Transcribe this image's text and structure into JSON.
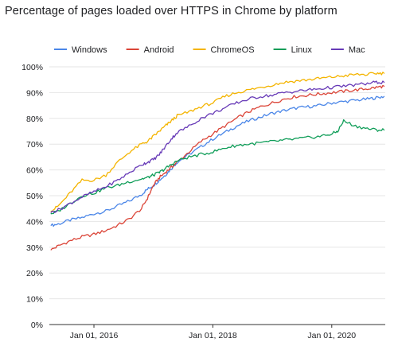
{
  "title": "Percentage of pages loaded over HTTPS in Chrome by platform",
  "chart_data": {
    "type": "line",
    "title": "Percentage of pages loaded over HTTPS in Chrome by platform",
    "xlabel": "",
    "ylabel": "",
    "x_ticks": [
      "Jan 01, 2016",
      "Jan 01, 2018",
      "Jan 01, 2020"
    ],
    "x_tick_values": [
      2016.0,
      2018.0,
      2020.0
    ],
    "xlim": [
      2015.25,
      2020.9
    ],
    "y_ticks": [
      "0%",
      "10%",
      "20%",
      "30%",
      "40%",
      "50%",
      "60%",
      "70%",
      "80%",
      "90%",
      "100%"
    ],
    "ylim": [
      0,
      100
    ],
    "y_unit": "%",
    "grid": true,
    "legend_position": "top",
    "series": [
      {
        "name": "Windows",
        "color": "#4a86e8",
        "x": [
          2015.28,
          2015.4,
          2015.6,
          2015.8,
          2016.0,
          2016.2,
          2016.4,
          2016.6,
          2016.8,
          2016.9,
          2017.0,
          2017.1,
          2017.2,
          2017.3,
          2017.4,
          2017.6,
          2017.8,
          2018.0,
          2018.2,
          2018.4,
          2018.6,
          2018.8,
          2019.0,
          2019.2,
          2019.4,
          2019.6,
          2019.8,
          2020.0,
          2020.2,
          2020.4,
          2020.6,
          2020.75,
          2020.88
        ],
        "y": [
          38.5,
          39,
          40.5,
          41.5,
          43,
          44,
          46,
          48,
          50.5,
          52.5,
          54,
          56,
          58,
          60.5,
          63,
          66,
          69,
          72,
          74.5,
          77,
          79,
          80.5,
          82,
          83,
          84,
          84.5,
          85,
          86,
          86.5,
          87,
          87.5,
          88,
          88.5
        ]
      },
      {
        "name": "Android",
        "color": "#db4437",
        "x": [
          2015.28,
          2015.4,
          2015.6,
          2015.8,
          2016.0,
          2016.2,
          2016.4,
          2016.6,
          2016.8,
          2016.9,
          2017.0,
          2017.1,
          2017.2,
          2017.3,
          2017.4,
          2017.6,
          2017.8,
          2018.0,
          2018.2,
          2018.4,
          2018.6,
          2018.8,
          2019.0,
          2019.2,
          2019.4,
          2019.6,
          2019.8,
          2020.0,
          2020.2,
          2020.4,
          2020.6,
          2020.75,
          2020.88
        ],
        "y": [
          29,
          30.5,
          32.5,
          34,
          35,
          36.5,
          38.5,
          41,
          45,
          49,
          54,
          57,
          59,
          61,
          63,
          67,
          71,
          74,
          77,
          80,
          82.5,
          84.5,
          86,
          87.5,
          88.5,
          89,
          89.5,
          90,
          90.5,
          91,
          91.5,
          92,
          92.5
        ]
      },
      {
        "name": "ChromeOS",
        "color": "#f4b400",
        "x": [
          2015.28,
          2015.4,
          2015.6,
          2015.8,
          2016.0,
          2016.2,
          2016.4,
          2016.6,
          2016.8,
          2016.9,
          2017.0,
          2017.1,
          2017.2,
          2017.3,
          2017.4,
          2017.6,
          2017.8,
          2018.0,
          2018.2,
          2018.4,
          2018.6,
          2018.8,
          2019.0,
          2019.2,
          2019.4,
          2019.6,
          2019.8,
          2020.0,
          2020.2,
          2020.4,
          2020.6,
          2020.75,
          2020.88
        ],
        "y": [
          44,
          46,
          51,
          56,
          56,
          58,
          63,
          67,
          70,
          71,
          73,
          75,
          77,
          79,
          81,
          82.5,
          84.5,
          86,
          88.5,
          90,
          91,
          92,
          93,
          94,
          94.5,
          95,
          95.5,
          96,
          96.5,
          97,
          97,
          97.5,
          97.5
        ]
      },
      {
        "name": "Linux",
        "color": "#0f9d58",
        "x": [
          2015.28,
          2015.4,
          2015.6,
          2015.8,
          2016.0,
          2016.2,
          2016.4,
          2016.6,
          2016.8,
          2016.9,
          2017.0,
          2017.1,
          2017.2,
          2017.3,
          2017.4,
          2017.6,
          2017.8,
          2018.0,
          2018.2,
          2018.4,
          2018.6,
          2018.8,
          2019.0,
          2019.2,
          2019.4,
          2019.6,
          2019.8,
          2020.0,
          2020.1,
          2020.2,
          2020.4,
          2020.6,
          2020.75,
          2020.88
        ],
        "y": [
          43,
          44,
          47,
          50,
          51,
          53,
          54,
          55.5,
          56.5,
          57,
          58,
          59,
          60.5,
          62,
          63.5,
          65,
          66,
          67,
          68.5,
          69.5,
          70,
          70.5,
          71,
          71.5,
          72,
          72.5,
          73,
          74,
          75,
          79,
          77,
          76,
          75.5,
          75.5
        ]
      },
      {
        "name": "Mac",
        "color": "#673ab7",
        "x": [
          2015.28,
          2015.4,
          2015.6,
          2015.8,
          2016.0,
          2016.2,
          2016.4,
          2016.6,
          2016.8,
          2016.9,
          2017.0,
          2017.1,
          2017.2,
          2017.3,
          2017.4,
          2017.6,
          2017.8,
          2018.0,
          2018.2,
          2018.4,
          2018.6,
          2018.8,
          2019.0,
          2019.2,
          2019.4,
          2019.6,
          2019.8,
          2020.0,
          2020.2,
          2020.4,
          2020.6,
          2020.75,
          2020.88
        ],
        "y": [
          43.5,
          44.5,
          47,
          49.5,
          51.5,
          53.5,
          56,
          59,
          62,
          63,
          64,
          66,
          69,
          72,
          74.5,
          77,
          80,
          82,
          84,
          86,
          87.5,
          88.5,
          89,
          90,
          90.5,
          91,
          91.5,
          92,
          92.5,
          93,
          93.5,
          94,
          94
        ]
      }
    ]
  }
}
